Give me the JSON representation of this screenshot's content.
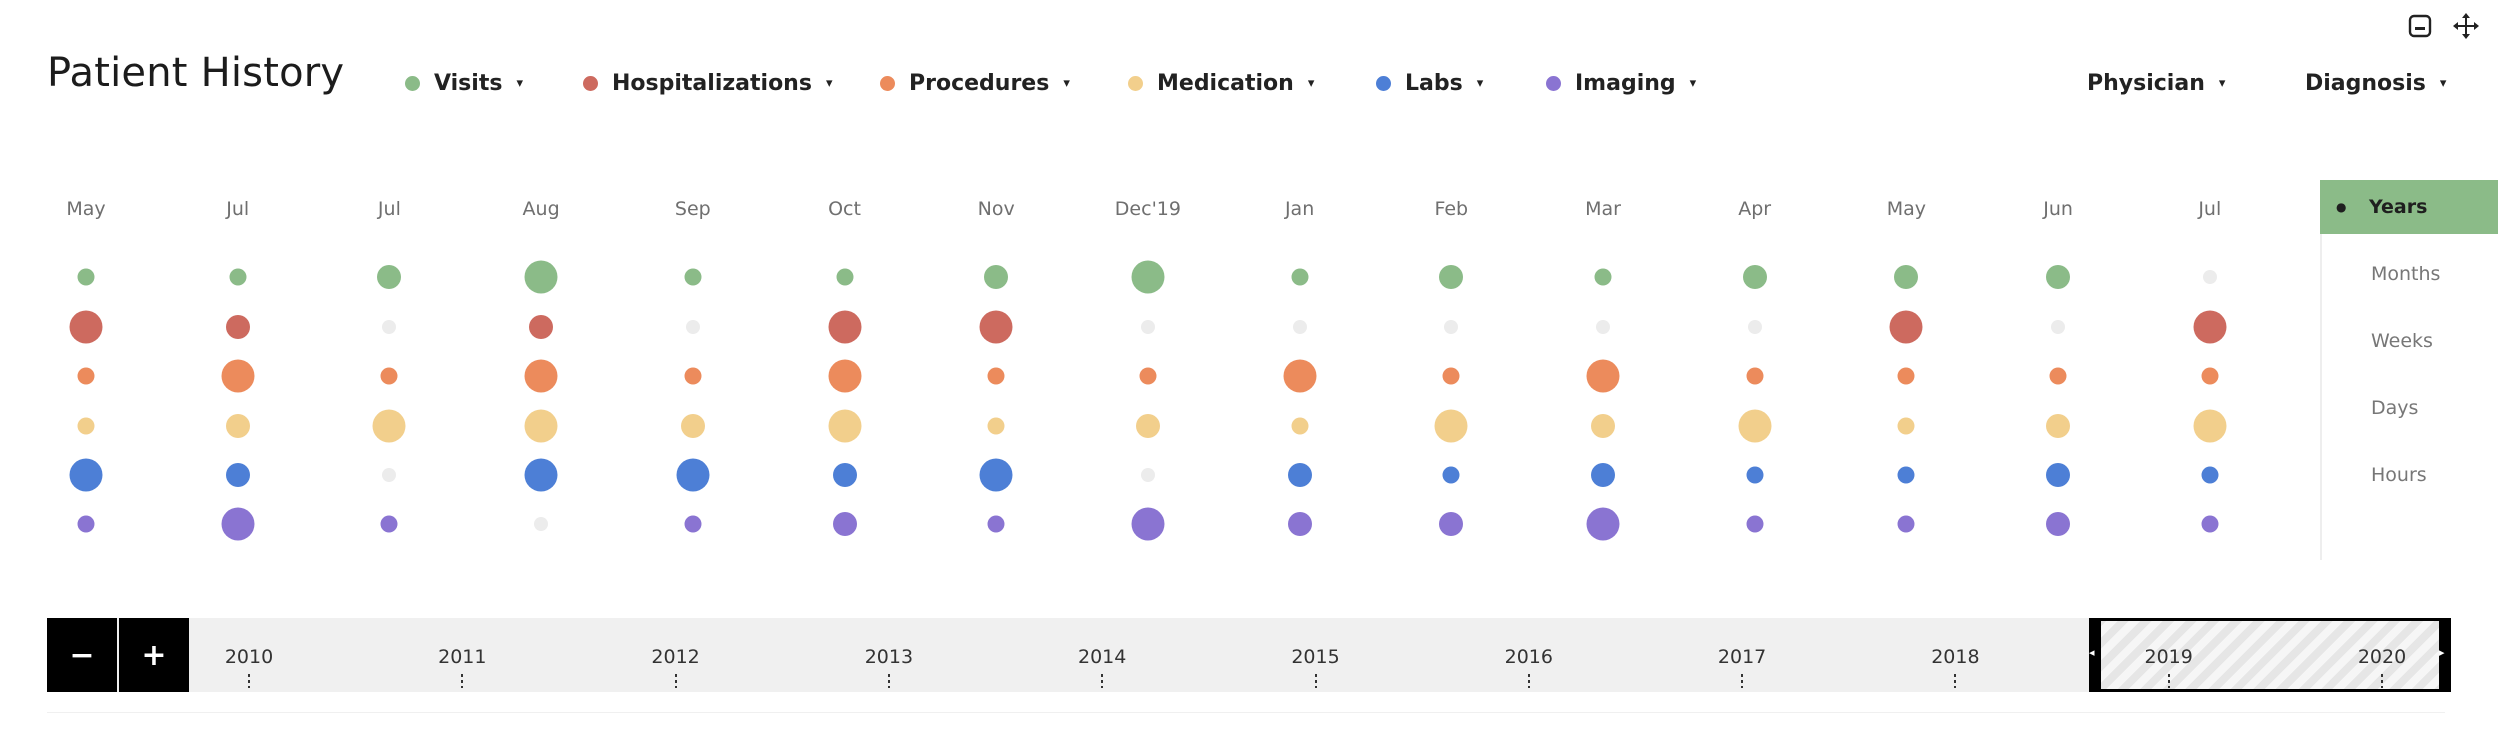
{
  "title": "Patient History",
  "categories": [
    {
      "key": "visits",
      "label": "Visits",
      "color": "#8bbb88"
    },
    {
      "key": "hospitalizations",
      "label": "Hospitalizations",
      "color": "#cd6a5f"
    },
    {
      "key": "procedures",
      "label": "Procedures",
      "color": "#ec8b5c"
    },
    {
      "key": "medication",
      "label": "Medication",
      "color": "#f2cf8c"
    },
    {
      "key": "labs",
      "label": "Labs",
      "color": "#4d7fd6"
    },
    {
      "key": "imaging",
      "label": "Imaging",
      "color": "#8a74d2"
    }
  ],
  "filters": {
    "physician": "Physician",
    "diagnosis": "Diagnosis"
  },
  "caret": "▾",
  "empty_color": "#ececec",
  "months": [
    "May",
    "Jul",
    "Jul",
    "Aug",
    "Sep",
    "Oct",
    "Nov",
    "Dec'19",
    "Jan",
    "Feb",
    "Mar",
    "Apr",
    "May",
    "Jun",
    "Jul"
  ],
  "bubble_sizes": [
    [
      1,
      3,
      1,
      1,
      3,
      1
    ],
    [
      1,
      2,
      3,
      2,
      2,
      3
    ],
    [
      2,
      0,
      1,
      3,
      0,
      1
    ],
    [
      3,
      2,
      3,
      3,
      3,
      0
    ],
    [
      1,
      0,
      1,
      2,
      3,
      1
    ],
    [
      1,
      3,
      3,
      3,
      2,
      2
    ],
    [
      2,
      3,
      1,
      1,
      3,
      1
    ],
    [
      3,
      0,
      1,
      2,
      0,
      3
    ],
    [
      1,
      0,
      3,
      1,
      2,
      2
    ],
    [
      2,
      0,
      1,
      3,
      1,
      2
    ],
    [
      1,
      0,
      3,
      2,
      2,
      3
    ],
    [
      2,
      0,
      1,
      3,
      1,
      1
    ],
    [
      2,
      3,
      1,
      1,
      1,
      1
    ],
    [
      2,
      0,
      1,
      2,
      2,
      2
    ],
    [
      0,
      3,
      1,
      3,
      1,
      1
    ]
  ],
  "zoom_levels": [
    "Years",
    "Months",
    "Weeks",
    "Days",
    "Hours"
  ],
  "active_zoom": "Years",
  "timeline": {
    "zoom_out": "−",
    "zoom_in": "+",
    "years": [
      "2010",
      "2011",
      "2012",
      "2013",
      "2014",
      "2015",
      "2016",
      "2017",
      "2018",
      "2019",
      "2020"
    ],
    "selected_range": [
      "2019",
      "2020"
    ]
  },
  "icons": [
    "minimize-icon",
    "move-icon"
  ]
}
